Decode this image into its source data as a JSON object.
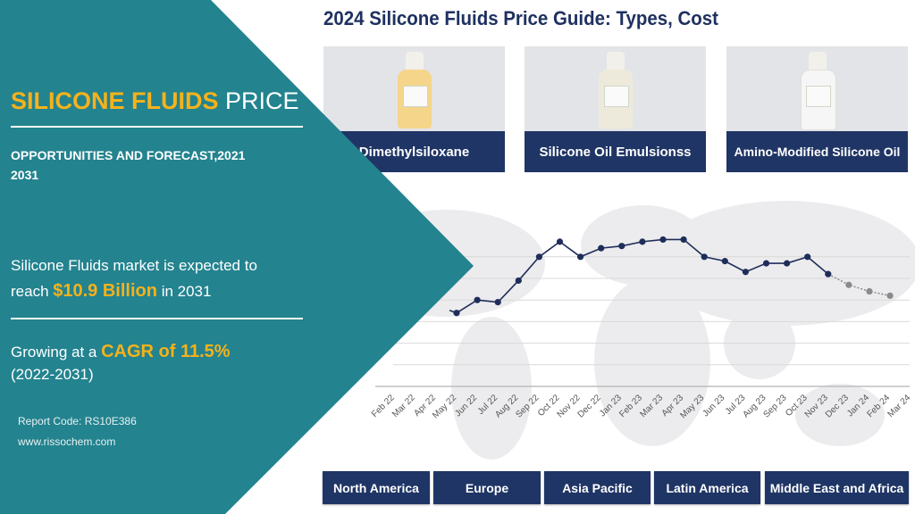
{
  "header": {
    "title": "2024 Silicone Fluids Price Guide: Types, Cost"
  },
  "products": [
    {
      "label": "Dimethylsiloxane",
      "visible_label": "dimethylsiloxane",
      "liquid_color": "#f4d58a"
    },
    {
      "label": "Silicone Oil Emulsionss",
      "liquid_color": "#eeeadb"
    },
    {
      "label": "Amino-Modified Silicone Oil",
      "liquid_color": "#f6f6f6"
    }
  ],
  "regions": [
    "North America",
    "Europe",
    "Asia Pacific",
    "Latin America",
    "Middle East and Africa"
  ],
  "panel": {
    "title_highlight": "SILICONE FLUIDS",
    "title_rest": " PRICE",
    "subtitle_line1": "OPPORTUNITIES AND FORECAST,2021",
    "subtitle_line2": "2031",
    "market_line1": "Silicone Fluids market is expected to",
    "market_pre": "reach ",
    "market_value": "$10.9 Billion",
    "market_post": " in 2031",
    "growth_pre": "Growing at a ",
    "growth_value": "CAGR of 11.5%",
    "growth_period": "(2022-2031)",
    "report_code": "Report Code: RS10E386",
    "website": "www.rissochem.com"
  },
  "colors": {
    "teal": "#23838f",
    "gold": "#f5b21b",
    "navy": "#1f3565",
    "line": "#1f2d5a",
    "forecast": "#8a8a8a"
  },
  "chart_data": {
    "type": "line",
    "title": "",
    "xlabel": "",
    "ylabel": "",
    "x_tick_labels": [
      "Feb 22",
      "Mar 22",
      "Apr 22",
      "May 22",
      "Jun 22",
      "Jul 22",
      "Aug 22",
      "Sep 22",
      "Oct 22",
      "Nov 22",
      "Dec 22",
      "Jan 23",
      "Feb 23",
      "Mar 23",
      "Apr 23",
      "May 23",
      "Jun 23",
      "Jul 23",
      "Aug 23",
      "Sep 23",
      "Oct 23",
      "Nov 23",
      "Dec 23",
      "Jan 24",
      "Feb 24",
      "Mar 24"
    ],
    "x": [
      "May 22",
      "Jun 22",
      "Jul 22",
      "Aug 22",
      "Sep 22",
      "Oct 22",
      "Nov 22",
      "Dec 22",
      "Jan 23",
      "Feb 23",
      "Mar 23",
      "Apr 23",
      "May 23",
      "Jun 23",
      "Jul 23",
      "Aug 23",
      "Sep 23",
      "Oct 23",
      "Nov 23",
      "Dec 23",
      "Jan 24",
      "Feb 24"
    ],
    "values": [
      3.4,
      4.0,
      3.9,
      4.9,
      6.0,
      6.7,
      6.0,
      6.4,
      6.5,
      6.7,
      6.8,
      6.8,
      6.0,
      5.8,
      5.3,
      5.7,
      5.7,
      6.0,
      5.2,
      4.7,
      4.4,
      4.2
    ],
    "forecast_from_index": 19,
    "ylim": [
      0,
      7.5
    ],
    "y_gridlines": [
      0,
      1,
      2,
      3,
      4,
      5,
      6
    ],
    "grid": true,
    "y_axis_labels_shown": false,
    "legend": "none"
  }
}
